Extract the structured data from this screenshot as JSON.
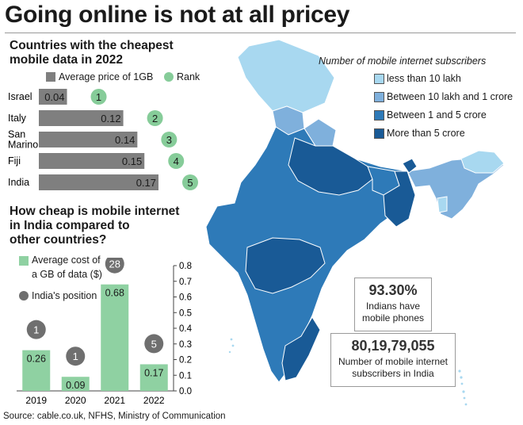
{
  "title": "Going online is not at all pricey",
  "colors": {
    "bar_grey": "#7f7f7f",
    "rank_green": "#86cc99",
    "bar_green": "#8fd1a2",
    "position_grey": "#6f6f6f",
    "map_less_10_lakh": "#a8d8f0",
    "map_10lakh_1crore": "#7fb0dc",
    "map_1_5_crore": "#2e7ab8",
    "map_more_5_crore": "#195a96"
  },
  "panel1": {
    "title": "Countries with the cheapest mobile data in 2022",
    "title_line1": "Countries with the cheapest",
    "title_line2": "mobile data in 2022",
    "legend_price": "Average price of 1GB",
    "legend_rank": "Rank"
  },
  "panel2": {
    "title_line1": "How cheap is mobile internet",
    "title_line2": "in India compared to",
    "title_line3": "other countries?",
    "legend_cost_line1": "Average cost of",
    "legend_cost_line2": "a GB of data ($)",
    "legend_position": "India's position"
  },
  "map": {
    "legend_title": "Number of mobile internet subscribers",
    "legend": [
      {
        "label": "less than 10 lakh",
        "color": "#a8d8f0"
      },
      {
        "label": "Between 10 lakh and 1 crore",
        "color": "#7fb0dc"
      },
      {
        "label": "Between 1 and 5 crore",
        "color": "#2e7ab8"
      },
      {
        "label": "More than 5 crore",
        "color": "#195a96"
      }
    ]
  },
  "stats": {
    "phones_pct": "93.30%",
    "phones_line1": "Indians have",
    "phones_line2": "mobile phones",
    "subscribers": "80,19,79,055",
    "subscribers_line1": "Number of mobile internet",
    "subscribers_line2": "subscribers in India"
  },
  "source": "Source: cable.co.uk, NFHS, Ministry of Communication",
  "chart_data": [
    {
      "type": "bar",
      "orientation": "horizontal",
      "title": "Countries with the cheapest mobile data in 2022",
      "categories": [
        "Israel",
        "Italy",
        "San Marino",
        "Fiji",
        "India"
      ],
      "category_lines": [
        [
          "Israel"
        ],
        [
          "Italy"
        ],
        [
          "San",
          "Marino"
        ],
        [
          "Fiji"
        ],
        [
          "India"
        ]
      ],
      "series": [
        {
          "name": "Average price of 1GB",
          "values": [
            0.04,
            0.12,
            0.14,
            0.15,
            0.17
          ]
        },
        {
          "name": "Rank",
          "values": [
            1,
            2,
            3,
            4,
            5
          ]
        }
      ],
      "value_labels": [
        "0.04",
        "0.12",
        "0.14",
        "0.15",
        "0.17"
      ],
      "xlim": [
        0,
        0.17
      ]
    },
    {
      "type": "bar",
      "title": "How cheap is mobile internet in India compared to other countries?",
      "categories": [
        "2019",
        "2020",
        "2021",
        "2022"
      ],
      "series": [
        {
          "name": "Average cost of a GB of data ($)",
          "values": [
            0.26,
            0.09,
            0.68,
            0.17
          ]
        },
        {
          "name": "India's position",
          "values": [
            1,
            1,
            28,
            5
          ]
        }
      ],
      "value_labels": [
        "0.26",
        "0.09",
        "0.68",
        "0.17"
      ],
      "ylim": [
        0,
        0.8
      ],
      "yticks": [
        0,
        0.1,
        0.2,
        0.3,
        0.4,
        0.5,
        0.6,
        0.7,
        0.8
      ],
      "ytick_labels": [
        "0.0",
        "0.1",
        "0.2",
        "0.3",
        "0.4",
        "0.5",
        "0.6",
        "0.7",
        "0.8"
      ],
      "grid": false
    }
  ]
}
